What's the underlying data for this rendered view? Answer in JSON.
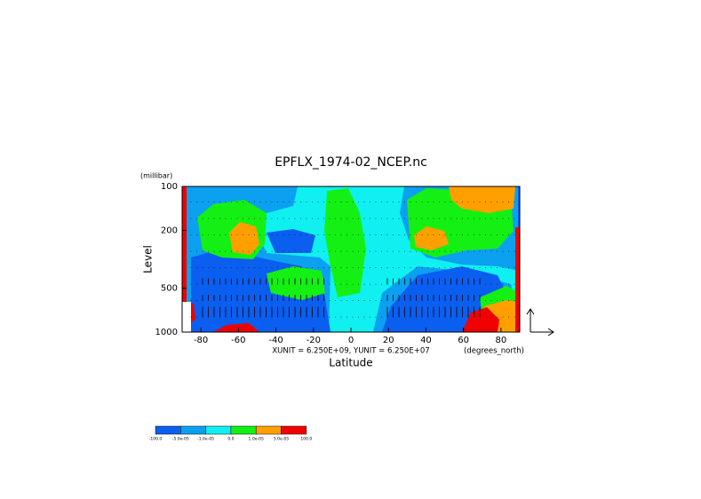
{
  "chart_data": {
    "type": "contour",
    "title": "EPFLX_1974-02_NCEP.nc",
    "y_label": "Level",
    "y_unit": "(millibar)",
    "x_label": "Latitude",
    "x_unit": "(degrees_north)",
    "annotation": "XUNIT = 6.250E+09, YUNIT = 6.250E+07",
    "xlim": [
      -90,
      90
    ],
    "xticks": [
      -80,
      -60,
      -40,
      -20,
      0,
      20,
      40,
      60,
      80
    ],
    "ylim": [
      1000,
      100
    ],
    "yticks": [
      100,
      200,
      500,
      1000
    ],
    "log_y": true,
    "levels": [
      {
        "value": -100,
        "label": "-100.0"
      },
      {
        "value": -5e-05,
        "label": "-5.0e-05"
      },
      {
        "value": -1e-05,
        "label": "-1.0e-05"
      },
      {
        "value": 0,
        "label": "0.0"
      },
      {
        "value": 1e-05,
        "label": "1.0e-05"
      },
      {
        "value": 5e-05,
        "label": "5.0e-05"
      },
      {
        "value": 100,
        "label": "100.0"
      }
    ],
    "colors": [
      "#0a5ff0",
      "#0ca0f0",
      "#10f0f0",
      "#14f014",
      "#ffa000",
      "#f00000"
    ]
  }
}
